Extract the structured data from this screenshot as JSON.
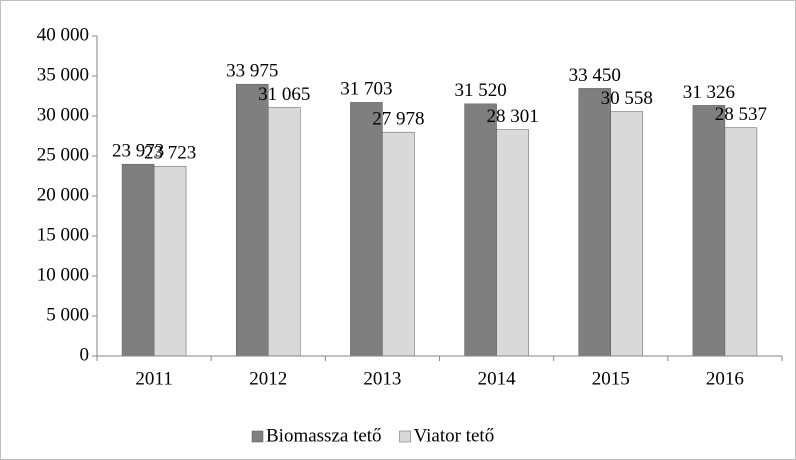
{
  "chart_data": {
    "type": "bar",
    "categories": [
      "2011",
      "2012",
      "2013",
      "2014",
      "2015",
      "2016"
    ],
    "series": [
      {
        "name": "Biomassza tető",
        "color": "#7f7f7f",
        "values": [
          23973,
          33975,
          31703,
          31520,
          33450,
          31326
        ],
        "value_labels": [
          "23 973",
          "33 975",
          "31 703",
          "31 520",
          "33 450",
          "31 326"
        ]
      },
      {
        "name": "Viator tető",
        "color": "#d9d9d9",
        "values": [
          23723,
          31065,
          27978,
          28301,
          30558,
          28537
        ],
        "value_labels": [
          "23 723",
          "31 065",
          "27 978",
          "28 301",
          "30 558",
          "28 537"
        ]
      }
    ],
    "ylim": [
      0,
      40000
    ],
    "yticks": [
      0,
      {
        "value": 5000,
        "label": "5 000"
      },
      {
        "value": 10000,
        "label": "10 000"
      },
      {
        "value": 15000,
        "label": "15 000"
      },
      {
        "value": 20000,
        "label": "20 000"
      },
      {
        "value": 25000,
        "label": "25 000"
      },
      {
        "value": 30000,
        "label": "30 000"
      },
      {
        "value": 35000,
        "label": "35 000"
      },
      {
        "value": 40000,
        "label": "40 000"
      }
    ],
    "grid": false,
    "legend": "bottom"
  }
}
